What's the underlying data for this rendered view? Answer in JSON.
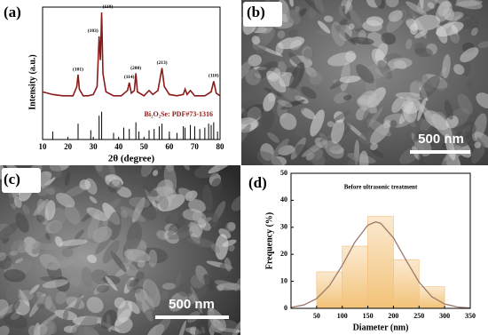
{
  "chart_data": [
    {
      "type": "line",
      "panel_label": "(a)",
      "x_label": "2θ (degree)",
      "y_label": "Intensity (a.u.)",
      "xlim": [
        10,
        80
      ],
      "xticks": [
        10,
        20,
        30,
        40,
        50,
        60,
        70,
        80
      ],
      "ylim": [
        0,
        100
      ],
      "series": [
        {
          "color": "#8b1a1a",
          "x": [
            10,
            14,
            18,
            22,
            23.5,
            24,
            24.5,
            26,
            28,
            30,
            31.5,
            32.3,
            32.8,
            33.3,
            33.8,
            35,
            38,
            41,
            43.5,
            44.2,
            45,
            46.2,
            46.8,
            47.4,
            50,
            52,
            53.5,
            55.5,
            57.1,
            58,
            60,
            63,
            65.5,
            66.2,
            67,
            68.3,
            70,
            74,
            76.5,
            77.5,
            78.5,
            80
          ],
          "values": [
            36,
            34,
            33,
            33,
            40,
            49,
            38,
            33,
            33,
            34,
            40,
            78,
            60,
            96,
            50,
            36,
            33,
            33,
            37,
            43,
            35,
            37,
            50,
            36,
            33,
            37,
            34,
            37,
            54,
            40,
            34,
            33,
            34,
            38,
            34,
            37,
            33,
            33,
            36,
            44,
            35,
            33
          ]
        }
      ],
      "peak_labels": {
        "x": [
          24,
          32.3,
          33.3,
          44.2,
          46.8,
          57.1,
          77.5
        ],
        "labels": [
          "(101)",
          "(103)",
          "(110)",
          "(114)",
          "(200)",
          "(213)",
          "(118)"
        ]
      },
      "reference": {
        "label": "Bi₂O₂Se: PDF#73-1316",
        "color": "#000000",
        "x": [
          14,
          24,
          29,
          32.3,
          33.3,
          38,
          42,
          44.2,
          46.8,
          48,
          52,
          54,
          56,
          57.1,
          60,
          63,
          65.5,
          66.2,
          68.3,
          70,
          72,
          74,
          75.5,
          76.5,
          77.5,
          79
        ],
        "values": [
          6,
          12,
          7,
          18,
          21,
          5,
          9,
          8,
          13,
          6,
          7,
          8,
          10,
          12,
          6,
          5,
          10,
          9,
          11,
          10,
          8,
          9,
          12,
          11,
          13,
          6
        ]
      }
    },
    {
      "type": "histogram",
      "panel_label": "(d)",
      "title": "Before ultrasonic treatment",
      "x_label": "Diameter (nm)",
      "y_label": "Frequency (%)",
      "bins": [
        50,
        100,
        150,
        200,
        250,
        300
      ],
      "values": [
        13.5,
        23,
        34,
        18,
        8
      ],
      "color": "#f3c07e",
      "xlim": [
        0,
        350
      ],
      "xticks": [
        50,
        100,
        150,
        200,
        250,
        300,
        350
      ],
      "ylim": [
        0,
        50
      ],
      "yticks": [
        0,
        10,
        20,
        30,
        40,
        50
      ],
      "fit": {
        "color": "#9c7a6c",
        "x": [
          0,
          25,
          50,
          75,
          100,
          125,
          150,
          165,
          175,
          200,
          225,
          250,
          275,
          300,
          325,
          350
        ],
        "values": [
          0.36,
          1.25,
          3.6,
          8.4,
          15.9,
          24.6,
          30.8,
          32,
          31.5,
          26.1,
          17.7,
          9.7,
          4.3,
          1.6,
          0.5,
          0.1
        ]
      }
    }
  ],
  "images": [
    {
      "panel_label": "(b)",
      "scale_bar": "500 nm"
    },
    {
      "panel_label": "(c)",
      "scale_bar": "500 nm"
    }
  ]
}
